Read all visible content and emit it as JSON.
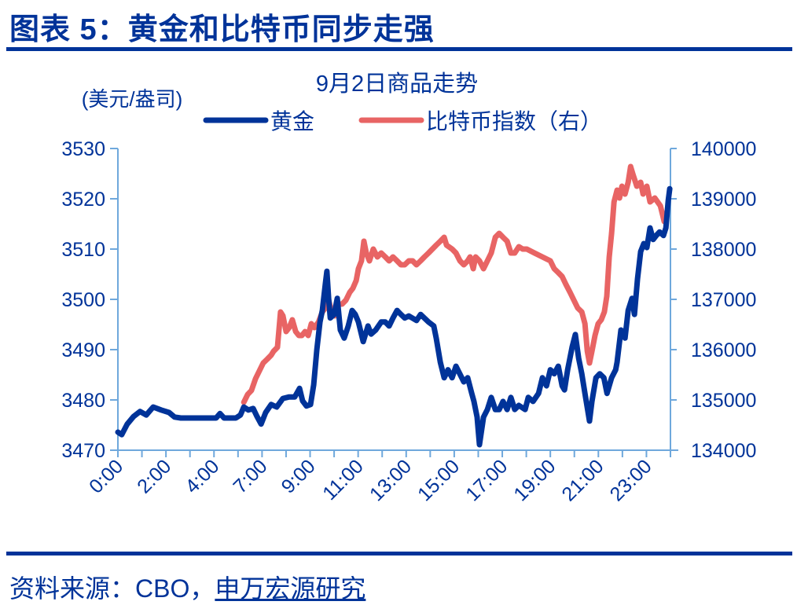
{
  "header": {
    "figure_title": "图表 5：黄金和比特币同步走强"
  },
  "footer": {
    "source_prefix": "资料来源：CBO，",
    "source_org": "申万宏源研究"
  },
  "colors": {
    "brand_blue": "#003399",
    "axis": "#6fa8dc",
    "gold_line": "#003399",
    "bitcoin_line": "#e86464"
  },
  "chart_data": {
    "type": "line",
    "title": "9月2日商品走势",
    "ylabel_left": "(美元/盎司)",
    "ylabel_right": "",
    "xlabel": "",
    "ylim_left": [
      3470,
      3530
    ],
    "ylim_right": [
      134000,
      140000
    ],
    "yticks_left": [
      "3530",
      "3520",
      "3510",
      "3500",
      "3490",
      "3480",
      "3470"
    ],
    "yticks_right": [
      "140000",
      "139000",
      "138000",
      "137000",
      "136000",
      "135000",
      "134000"
    ],
    "x_tick_count": 24,
    "x_tick_labels": [
      {
        "index": 0,
        "label": "0:00"
      },
      {
        "index": 2,
        "label": "2:00"
      },
      {
        "index": 4,
        "label": "4:00"
      },
      {
        "index": 6,
        "label": "7:00"
      },
      {
        "index": 8,
        "label": "9:00"
      },
      {
        "index": 10,
        "label": "11:00"
      },
      {
        "index": 12,
        "label": "13:00"
      },
      {
        "index": 14,
        "label": "15:00"
      },
      {
        "index": 16,
        "label": "17:00"
      },
      {
        "index": 18,
        "label": "19:00"
      },
      {
        "index": 20,
        "label": "21:00"
      },
      {
        "index": 22,
        "label": "23:00"
      }
    ],
    "grid": false,
    "legend_position": "top",
    "series": [
      {
        "name": "黄金",
        "axis": "left",
        "color": "#003399",
        "points": [
          [
            0.0,
            3473.6
          ],
          [
            0.16,
            3473.1
          ],
          [
            0.39,
            3475.2
          ],
          [
            0.65,
            3476.7
          ],
          [
            0.92,
            3477.7
          ],
          [
            1.18,
            3477.0
          ],
          [
            1.47,
            3478.6
          ],
          [
            1.8,
            3478.0
          ],
          [
            2.13,
            3477.5
          ],
          [
            2.36,
            3476.6
          ],
          [
            2.62,
            3476.4
          ],
          [
            3.27,
            3476.4
          ],
          [
            4.09,
            3476.4
          ],
          [
            4.25,
            3477.3
          ],
          [
            4.42,
            3476.4
          ],
          [
            4.91,
            3476.4
          ],
          [
            5.1,
            3477.0
          ],
          [
            5.24,
            3478.6
          ],
          [
            5.43,
            3478.0
          ],
          [
            5.63,
            3478.3
          ],
          [
            5.79,
            3476.7
          ],
          [
            5.96,
            3475.2
          ],
          [
            6.15,
            3477.5
          ],
          [
            6.38,
            3479.1
          ],
          [
            6.61,
            3478.6
          ],
          [
            6.87,
            3480.3
          ],
          [
            7.13,
            3480.6
          ],
          [
            7.36,
            3480.6
          ],
          [
            7.56,
            3482.3
          ],
          [
            7.69,
            3479.8
          ],
          [
            7.85,
            3478.8
          ],
          [
            8.02,
            3479.1
          ],
          [
            8.15,
            3483.0
          ],
          [
            8.28,
            3490.0
          ],
          [
            8.41,
            3495.5
          ],
          [
            8.51,
            3497.8
          ],
          [
            8.64,
            3503.3
          ],
          [
            8.7,
            3505.6
          ],
          [
            8.77,
            3500.2
          ],
          [
            8.84,
            3496.3
          ],
          [
            9.0,
            3497.0
          ],
          [
            9.13,
            3500.2
          ],
          [
            9.26,
            3493.9
          ],
          [
            9.42,
            3492.3
          ],
          [
            9.59,
            3494.7
          ],
          [
            9.75,
            3497.8
          ],
          [
            9.88,
            3497.0
          ],
          [
            10.01,
            3495.5
          ],
          [
            10.21,
            3491.6
          ],
          [
            10.41,
            3494.7
          ],
          [
            10.54,
            3493.1
          ],
          [
            10.73,
            3493.9
          ],
          [
            10.96,
            3495.5
          ],
          [
            11.13,
            3495.5
          ],
          [
            11.29,
            3494.7
          ],
          [
            11.45,
            3496.3
          ],
          [
            11.62,
            3497.8
          ],
          [
            11.78,
            3497.0
          ],
          [
            11.94,
            3496.3
          ],
          [
            12.11,
            3496.7
          ],
          [
            12.43,
            3495.8
          ],
          [
            12.6,
            3497.0
          ],
          [
            12.93,
            3495.5
          ],
          [
            13.15,
            3494.7
          ],
          [
            13.25,
            3492.3
          ],
          [
            13.42,
            3487.5
          ],
          [
            13.58,
            3484.4
          ],
          [
            13.74,
            3486.0
          ],
          [
            13.91,
            3484.4
          ],
          [
            14.07,
            3486.7
          ],
          [
            14.4,
            3483.6
          ],
          [
            14.56,
            3484.4
          ],
          [
            14.73,
            3481.3
          ],
          [
            14.82,
            3479.7
          ],
          [
            14.95,
            3476.6
          ],
          [
            15.05,
            3471.1
          ],
          [
            15.22,
            3476.6
          ],
          [
            15.38,
            3478.1
          ],
          [
            15.54,
            3480.5
          ],
          [
            15.71,
            3478.1
          ],
          [
            15.87,
            3478.1
          ],
          [
            16.03,
            3479.7
          ],
          [
            16.2,
            3478.1
          ],
          [
            16.36,
            3480.5
          ],
          [
            16.52,
            3478.1
          ],
          [
            16.69,
            3478.9
          ],
          [
            16.95,
            3478.1
          ],
          [
            17.08,
            3480.5
          ],
          [
            17.28,
            3479.7
          ],
          [
            17.51,
            3481.3
          ],
          [
            17.67,
            3484.4
          ],
          [
            17.84,
            3482.8
          ],
          [
            18.0,
            3486.0
          ],
          [
            18.16,
            3485.2
          ],
          [
            18.33,
            3486.7
          ],
          [
            18.49,
            3482.8
          ],
          [
            18.59,
            3482.0
          ],
          [
            18.72,
            3486.0
          ],
          [
            18.91,
            3490.6
          ],
          [
            19.04,
            3493.0
          ],
          [
            19.18,
            3488.3
          ],
          [
            19.31,
            3485.2
          ],
          [
            19.44,
            3481.3
          ],
          [
            19.63,
            3475.8
          ],
          [
            19.73,
            3479.7
          ],
          [
            19.9,
            3484.4
          ],
          [
            20.06,
            3485.2
          ],
          [
            20.23,
            3484.4
          ],
          [
            20.36,
            3481.3
          ],
          [
            20.55,
            3484.4
          ],
          [
            20.72,
            3486.0
          ],
          [
            20.78,
            3487.5
          ],
          [
            20.94,
            3493.9
          ],
          [
            21.11,
            3492.3
          ],
          [
            21.24,
            3497.8
          ],
          [
            21.4,
            3500.2
          ],
          [
            21.5,
            3497.0
          ],
          [
            21.63,
            3504.1
          ],
          [
            21.76,
            3509.5
          ],
          [
            21.89,
            3511.1
          ],
          [
            22.02,
            3510.3
          ],
          [
            22.15,
            3514.2
          ],
          [
            22.28,
            3511.9
          ],
          [
            22.41,
            3512.7
          ],
          [
            22.55,
            3513.4
          ],
          [
            22.71,
            3512.7
          ],
          [
            22.81,
            3514.2
          ],
          [
            22.91,
            3519.7
          ],
          [
            22.97,
            3522.0
          ]
        ]
      },
      {
        "name": "比特币指数（右）",
        "axis": "right",
        "color": "#e86464",
        "points": [
          [
            5.24,
            134953
          ],
          [
            5.4,
            135109
          ],
          [
            5.56,
            135188
          ],
          [
            5.73,
            135422
          ],
          [
            5.89,
            135578
          ],
          [
            6.05,
            135734
          ],
          [
            6.22,
            135813
          ],
          [
            6.38,
            135891
          ],
          [
            6.48,
            135969
          ],
          [
            6.64,
            136047
          ],
          [
            6.77,
            136750
          ],
          [
            6.87,
            136672
          ],
          [
            7.0,
            136359
          ],
          [
            7.13,
            136438
          ],
          [
            7.26,
            136594
          ],
          [
            7.4,
            136359
          ],
          [
            7.53,
            136281
          ],
          [
            7.66,
            136281
          ],
          [
            7.79,
            136359
          ],
          [
            7.92,
            136281
          ],
          [
            8.05,
            136516
          ],
          [
            8.18,
            136438
          ],
          [
            8.35,
            136547
          ],
          [
            8.51,
            136750
          ],
          [
            8.64,
            136828
          ],
          [
            8.77,
            136984
          ],
          [
            8.9,
            136750
          ],
          [
            9.03,
            136672
          ],
          [
            9.16,
            136906
          ],
          [
            9.33,
            136906
          ],
          [
            9.49,
            136984
          ],
          [
            9.65,
            137141
          ],
          [
            9.78,
            137219
          ],
          [
            9.92,
            137375
          ],
          [
            10.01,
            137609
          ],
          [
            10.14,
            137766
          ],
          [
            10.24,
            138156
          ],
          [
            10.34,
            137922
          ],
          [
            10.47,
            137766
          ],
          [
            10.63,
            138000
          ],
          [
            10.8,
            137844
          ],
          [
            10.96,
            137922
          ],
          [
            11.13,
            137844
          ],
          [
            11.29,
            137766
          ],
          [
            11.45,
            137844
          ],
          [
            11.62,
            137766
          ],
          [
            11.78,
            137688
          ],
          [
            11.94,
            137688
          ],
          [
            12.11,
            137766
          ],
          [
            12.27,
            137766
          ],
          [
            12.43,
            137688
          ],
          [
            12.6,
            137766
          ],
          [
            12.76,
            137844
          ],
          [
            12.93,
            137922
          ],
          [
            13.09,
            138000
          ],
          [
            13.25,
            138078
          ],
          [
            13.42,
            138156
          ],
          [
            13.58,
            138234
          ],
          [
            13.68,
            138078
          ],
          [
            13.91,
            138000
          ],
          [
            14.07,
            137922
          ],
          [
            14.24,
            137766
          ],
          [
            14.4,
            137688
          ],
          [
            14.56,
            137766
          ],
          [
            14.66,
            137844
          ],
          [
            14.79,
            137609
          ],
          [
            14.89,
            137844
          ],
          [
            15.05,
            137766
          ],
          [
            15.22,
            137609
          ],
          [
            15.38,
            137766
          ],
          [
            15.54,
            137922
          ],
          [
            15.71,
            138234
          ],
          [
            15.87,
            138313
          ],
          [
            16.03,
            138234
          ],
          [
            16.2,
            138156
          ],
          [
            16.36,
            137922
          ],
          [
            16.52,
            137922
          ],
          [
            16.69,
            138047
          ],
          [
            16.85,
            138000
          ],
          [
            17.02,
            138000
          ],
          [
            17.34,
            137922
          ],
          [
            17.67,
            137844
          ],
          [
            18.0,
            137766
          ],
          [
            18.16,
            137609
          ],
          [
            18.33,
            137531
          ],
          [
            18.49,
            137453
          ],
          [
            18.65,
            137297
          ],
          [
            18.82,
            137141
          ],
          [
            18.98,
            136984
          ],
          [
            19.14,
            136828
          ],
          [
            19.31,
            136750
          ],
          [
            19.44,
            136516
          ],
          [
            19.54,
            135969
          ],
          [
            19.63,
            135734
          ],
          [
            19.73,
            135969
          ],
          [
            19.86,
            136281
          ],
          [
            19.99,
            136516
          ],
          [
            20.12,
            136594
          ],
          [
            20.25,
            136750
          ],
          [
            20.35,
            137063
          ],
          [
            20.45,
            137844
          ],
          [
            20.55,
            138313
          ],
          [
            20.65,
            138938
          ],
          [
            20.78,
            139172
          ],
          [
            20.88,
            139016
          ],
          [
            20.98,
            139250
          ],
          [
            21.11,
            139094
          ],
          [
            21.24,
            139328
          ],
          [
            21.34,
            139641
          ],
          [
            21.44,
            139484
          ],
          [
            21.6,
            139250
          ],
          [
            21.76,
            139328
          ],
          [
            21.86,
            139094
          ],
          [
            22.02,
            139250
          ],
          [
            22.15,
            138938
          ],
          [
            22.35,
            139016
          ],
          [
            22.58,
            138859
          ],
          [
            22.74,
            138547
          ],
          [
            22.84,
            138703
          ]
        ]
      }
    ]
  }
}
